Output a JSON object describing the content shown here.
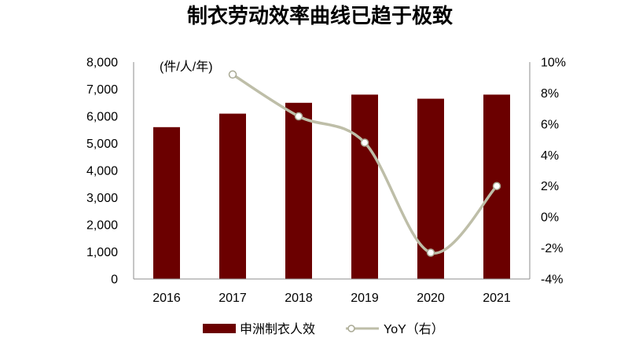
{
  "chart_data": {
    "type": "bar",
    "title": "制衣劳动效率曲线已趋于极致",
    "ylabel": "(件/人/年)",
    "categories": [
      "2016",
      "2017",
      "2018",
      "2019",
      "2020",
      "2021"
    ],
    "series": [
      {
        "name": "申洲制衣人效",
        "type": "bar",
        "y_axis": "left",
        "color": "#6B0000",
        "values": [
          5600,
          6100,
          6500,
          6800,
          6650,
          6800
        ]
      },
      {
        "name": "YoY（右）",
        "type": "line",
        "y_axis": "right",
        "color": "#BEBEA8",
        "values": [
          null,
          9.2,
          6.5,
          4.8,
          -2.3,
          2.0
        ]
      }
    ],
    "y_left": {
      "range": [
        0,
        8000
      ],
      "tick_labels": [
        "0",
        "1,000",
        "2,000",
        "3,000",
        "4,000",
        "5,000",
        "6,000",
        "7,000",
        "8,000"
      ]
    },
    "y_right": {
      "range": [
        -4,
        10
      ],
      "tick_labels": [
        "-4%",
        "-2%",
        "0%",
        "2%",
        "4%",
        "6%",
        "8%",
        "10%"
      ]
    },
    "grid": false,
    "legend": "bottom-center"
  }
}
